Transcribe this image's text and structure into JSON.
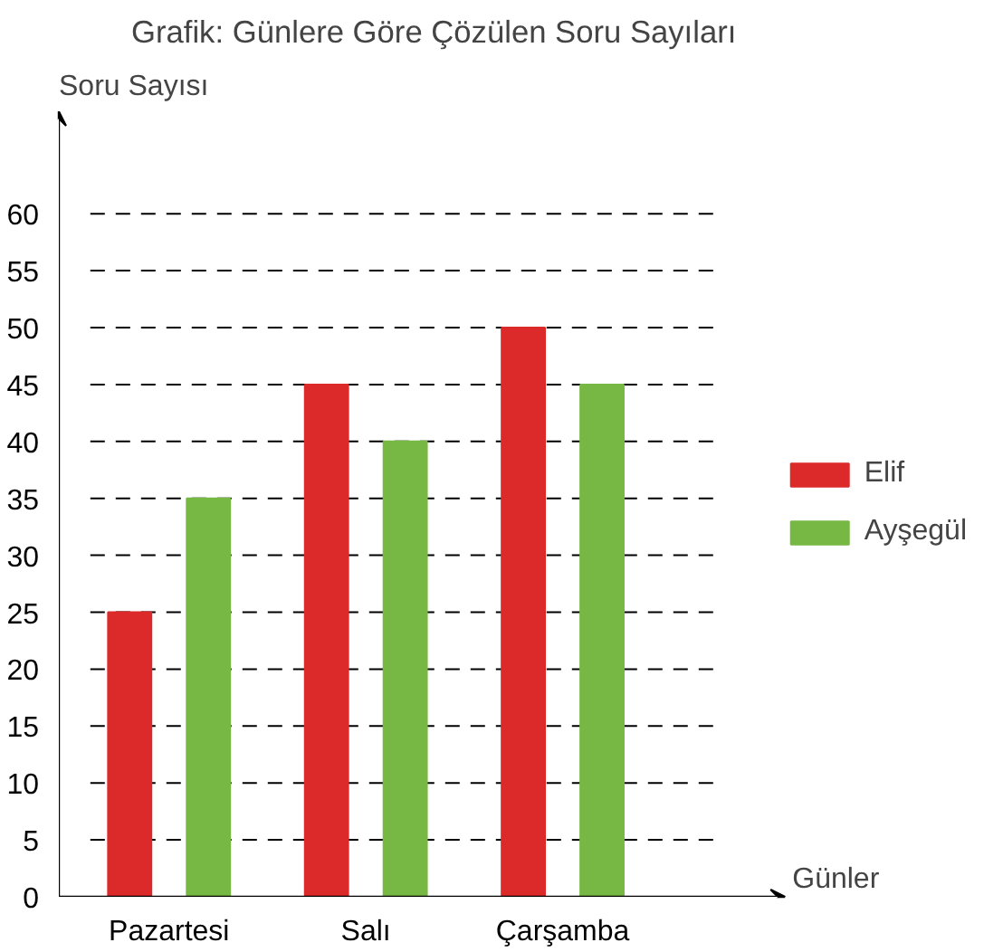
{
  "chart_data": {
    "type": "bar",
    "title": "Grafik: Günlere Göre Çözülen Soru Sayıları",
    "xlabel": "Günler",
    "ylabel": "Soru Sayısı",
    "categories": [
      "Pazartesi",
      "Salı",
      "Çarşamba"
    ],
    "series": [
      {
        "name": "Elif",
        "color": "#dc2a2a",
        "values": [
          25,
          45,
          50
        ]
      },
      {
        "name": "Ayşegül",
        "color": "#76b843",
        "values": [
          35,
          40,
          45
        ]
      }
    ],
    "ylim": [
      0,
      69
    ],
    "yticks": [
      0,
      5,
      10,
      15,
      20,
      25,
      30,
      35,
      40,
      45,
      50,
      55,
      60
    ],
    "grid": "y",
    "legend": "right"
  }
}
